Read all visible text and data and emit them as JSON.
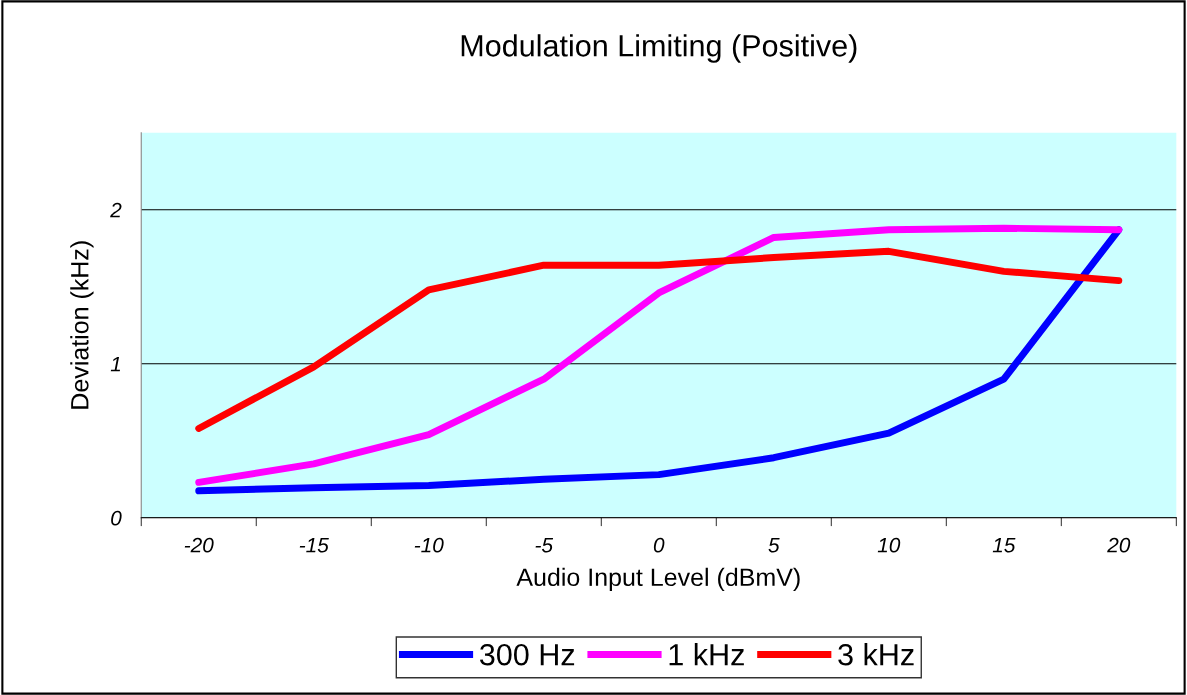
{
  "chart_data": {
    "type": "line",
    "title": "Modulation Limiting (Positive)",
    "xlabel": "Audio Input Level (dBmV)",
    "ylabel": "Deviation (kHz)",
    "categories": [
      "-20",
      "-15",
      "-10",
      "-5",
      "0",
      "5",
      "10",
      "15",
      "20"
    ],
    "series": [
      {
        "name": "300 Hz",
        "color": "#0000ff",
        "values": [
          0.175,
          0.195,
          0.21,
          0.25,
          0.28,
          0.39,
          0.55,
          0.9,
          1.87
        ]
      },
      {
        "name": "1 kHz",
        "color": "#ff00ff",
        "values": [
          0.23,
          0.35,
          0.54,
          0.9,
          1.46,
          1.82,
          1.87,
          1.88,
          1.87
        ]
      },
      {
        "name": "3 kHz",
        "color": "#ff0000",
        "values": [
          0.58,
          0.98,
          1.48,
          1.64,
          1.64,
          1.69,
          1.73,
          1.6,
          1.54
        ]
      }
    ],
    "ylim": [
      0,
      2.5
    ],
    "yticks": [
      0,
      1,
      2
    ],
    "grid": "y",
    "legend": "bottom",
    "marker": "none",
    "line_style": "solid"
  }
}
